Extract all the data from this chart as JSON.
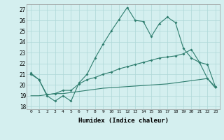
{
  "xlabel": "Humidex (Indice chaleur)",
  "x": [
    0,
    1,
    2,
    3,
    4,
    5,
    6,
    7,
    8,
    9,
    10,
    11,
    12,
    13,
    14,
    15,
    16,
    17,
    18,
    19,
    20,
    21,
    22,
    23
  ],
  "line1": [
    21.1,
    20.5,
    19.0,
    18.5,
    19.0,
    18.5,
    20.2,
    21.0,
    22.5,
    23.8,
    25.0,
    26.1,
    27.2,
    26.0,
    25.9,
    24.5,
    25.7,
    26.3,
    25.8,
    23.4,
    22.5,
    22.1,
    20.6,
    19.8
  ],
  "line2": [
    21.0,
    20.5,
    19.1,
    19.2,
    19.5,
    19.5,
    20.1,
    20.5,
    20.7,
    21.0,
    21.2,
    21.5,
    21.7,
    21.9,
    22.1,
    22.3,
    22.5,
    22.6,
    22.7,
    22.9,
    23.3,
    22.1,
    21.9,
    19.8
  ],
  "line3": [
    19.0,
    19.0,
    19.1,
    19.2,
    19.2,
    19.3,
    19.4,
    19.5,
    19.6,
    19.7,
    19.75,
    19.8,
    19.85,
    19.9,
    19.95,
    20.0,
    20.05,
    20.1,
    20.2,
    20.3,
    20.4,
    20.5,
    20.6,
    19.7
  ],
  "line_color": "#2e7d6e",
  "bg_color": "#d4efef",
  "grid_color": "#aed8d8",
  "ylim": [
    17.75,
    27.5
  ],
  "yticks": [
    18,
    19,
    20,
    21,
    22,
    23,
    24,
    25,
    26,
    27
  ],
  "xlim": [
    -0.5,
    23.5
  ],
  "marker": "D",
  "markersize": 2.0
}
